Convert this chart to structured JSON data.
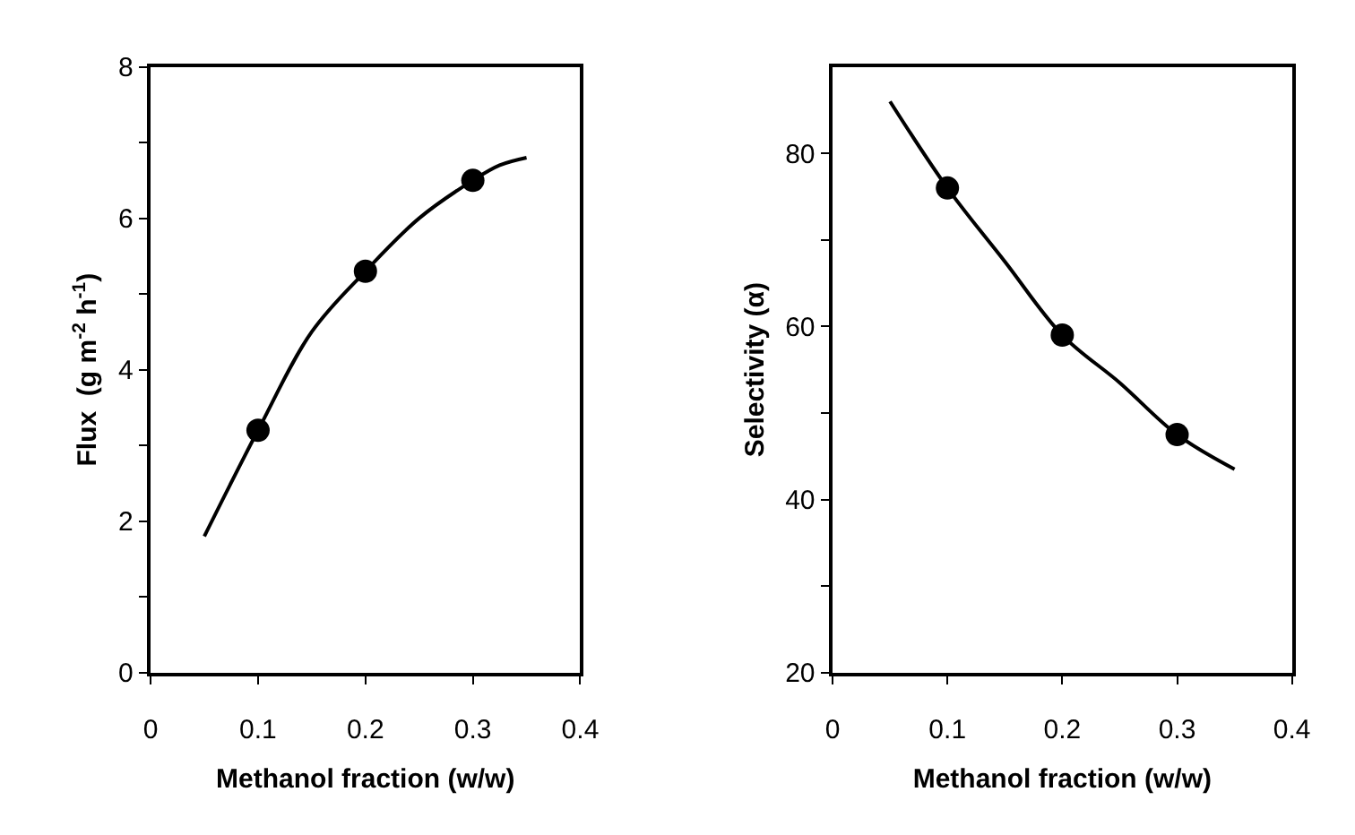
{
  "chart_data": [
    {
      "type": "line",
      "xlabel": "Methanol fraction (w/w)",
      "ylabel": "Flux  (g m$^{-2}$ h$^{-1}$)",
      "xlim": [
        0,
        0.4
      ],
      "xticks": [
        0,
        0.1,
        0.2,
        0.3,
        0.4
      ],
      "ylim": [
        0,
        8
      ],
      "yticks": [
        0,
        {
          "value": 1,
          "label": null
        },
        2,
        {
          "value": 3,
          "label": null
        },
        4,
        {
          "value": 5,
          "label": null
        },
        6,
        {
          "value": 7,
          "label": null
        },
        8
      ],
      "line_style": "solid",
      "series": [
        {
          "color": "#000000",
          "marker": "none",
          "x": [
            0.05,
            0.1,
            0.15,
            0.2,
            0.25,
            0.3,
            0.325,
            0.35
          ],
          "values": [
            1.8,
            3.2,
            4.5,
            5.3,
            6.0,
            6.5,
            6.7,
            6.8
          ]
        },
        {
          "type": "scatter",
          "color": "#000000",
          "marker": "circle",
          "x": [
            0.1,
            0.2,
            0.3
          ],
          "values": [
            3.2,
            5.3,
            6.5
          ]
        }
      ]
    },
    {
      "type": "line",
      "xlabel": "Methanol fraction (w/w)",
      "ylabel": "Selectivity (α)",
      "xlim": [
        0,
        0.4
      ],
      "xticks": [
        0,
        0.1,
        0.2,
        0.3,
        0.4
      ],
      "ylim": [
        20,
        90
      ],
      "yticks": [
        20,
        {
          "value": 30,
          "label": null
        },
        40,
        {
          "value": 50,
          "label": null
        },
        60,
        {
          "value": 70,
          "label": null
        },
        80
      ],
      "line_style": "solid",
      "series": [
        {
          "color": "#000000",
          "marker": "none",
          "x": [
            0.05,
            0.1,
            0.15,
            0.2,
            0.25,
            0.3,
            0.35
          ],
          "values": [
            86,
            76,
            67.5,
            59,
            53.5,
            47.5,
            43.5
          ]
        },
        {
          "type": "scatter",
          "color": "#000000",
          "marker": "circle",
          "x": [
            0.1,
            0.2,
            0.3
          ],
          "values": [
            76,
            59,
            47.5
          ]
        }
      ]
    }
  ]
}
